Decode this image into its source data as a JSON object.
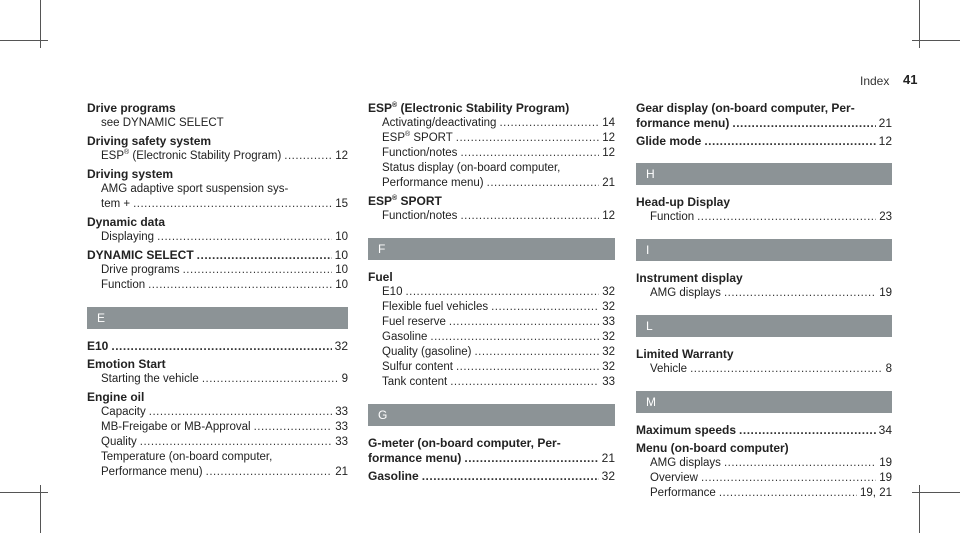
{
  "header": {
    "title": "Index",
    "page": "41"
  },
  "col1": {
    "drive_programs": "Drive programs",
    "drive_programs_see": "see DYNAMIC SELECT",
    "driving_safety": "Driving safety system",
    "esp_a": "ESP",
    "esp_a_rest": " (Electronic Stability Program)",
    "esp_a_page": "12",
    "driving_system": "Driving system",
    "amg_line1": "AMG adaptive sport suspension sys-",
    "amg_line2": "tem +",
    "amg_page": "15",
    "dynamic_data": "Dynamic data",
    "displaying": "Displaying",
    "displaying_page": "10",
    "dyn_select": "DYNAMIC SELECT",
    "dyn_select_page": "10",
    "drive_programs2": "Drive programs",
    "drive_programs2_page": "10",
    "function": "Function",
    "function_page": "10",
    "letter_e": "E",
    "e10": "E10",
    "e10_page": "32",
    "emotion_start": "Emotion Start",
    "starting": "Starting the vehicle",
    "starting_page": "9",
    "engine_oil": "Engine oil",
    "capacity": "Capacity",
    "capacity_page": "33",
    "mb_freigabe": "MB-Freigabe or MB-Approval",
    "mb_freigabe_page": "33",
    "quality": "Quality",
    "quality_page": "33",
    "temp_line1": "Temperature (on-board computer,",
    "temp_line2": "Performance menu)",
    "temp_page": "21"
  },
  "col2": {
    "esp_head": "ESP",
    "esp_head_rest": " (Electronic Stability Program)",
    "activating": "Activating/deactivating",
    "activating_page": "14",
    "esp_sport": "ESP",
    "esp_sport_rest": " SPORT",
    "esp_sport_page": "12",
    "func_notes": "Function/notes",
    "func_notes_page": "12",
    "status_line1": "Status display (on-board computer,",
    "status_line2": "Performance menu)",
    "status_page": "21",
    "esp_sport_head": "ESP",
    "esp_sport_head_rest": " SPORT",
    "func_notes2": "Function/notes",
    "func_notes2_page": "12",
    "letter_f": "F",
    "fuel": "Fuel",
    "f_e10": "E10",
    "f_e10_page": "32",
    "flexible": "Flexible fuel vehicles",
    "flexible_page": "32",
    "reserve": "Fuel reserve",
    "reserve_page": "33",
    "gasoline": "Gasoline",
    "gasoline_page": "32",
    "quality": "Quality (gasoline)",
    "quality_page": "32",
    "sulfur": "Sulfur content",
    "sulfur_page": "32",
    "tank": "Tank content",
    "tank_page": "33",
    "letter_g": "G",
    "gmeter_line1": "G-meter (on-board computer, Per-",
    "gmeter_line2": "formance menu)",
    "gmeter_page": "21",
    "gasoline_head": "Gasoline",
    "gasoline_head_page": "32"
  },
  "col3": {
    "gear_line1": "Gear display (on-board computer, Per-",
    "gear_line2": "formance menu)",
    "gear_page": "21",
    "glide": "Glide mode",
    "glide_page": "12",
    "letter_h": "H",
    "hud": "Head-up Display",
    "hud_function": "Function",
    "hud_function_page": "23",
    "letter_i": "I",
    "instrument": "Instrument display",
    "amg_displays": "AMG displays",
    "amg_displays_page": "19",
    "letter_l": "L",
    "warranty": "Limited Warranty",
    "vehicle": "Vehicle",
    "vehicle_page": "8",
    "letter_m": "M",
    "max_speeds": "Maximum speeds",
    "max_speeds_page": "34",
    "menu_obc": "Menu (on-board computer)",
    "menu_amg": "AMG displays",
    "menu_amg_page": "19",
    "overview": "Overview",
    "overview_page": "19",
    "performance": "Performance",
    "performance_page": "19, 21"
  },
  "superscript": "®"
}
